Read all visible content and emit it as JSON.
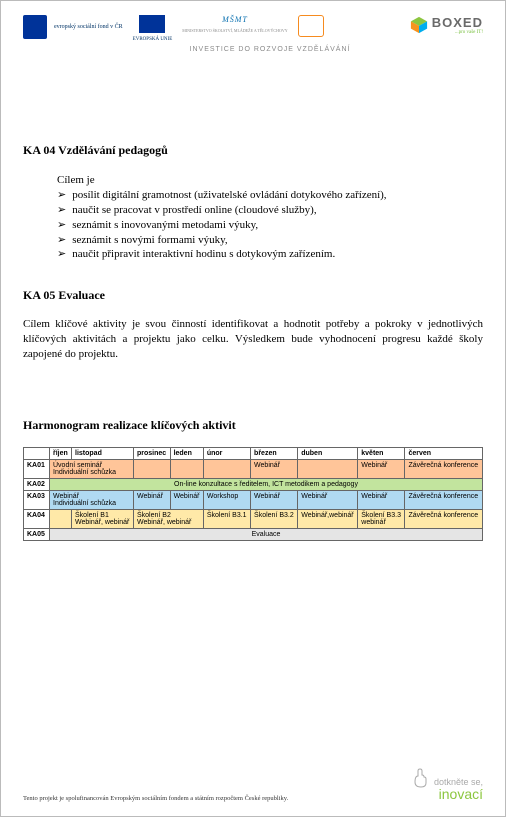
{
  "header": {
    "esf_text": "evropský\nsociální\nfond v ČR",
    "eu_text": "EVROPSKÁ UNIE",
    "msmt": "MŠMT",
    "msmt_sub": "MINISTERSTVO ŠKOLSTVÍ,\nMLÁDEŽE A TĚLOVÝCHOVY",
    "boxed": "BOXED",
    "boxed_sub": "...pro vaše IT!",
    "inv_line": "INVESTICE DO ROZVOJE VZDĚLÁVÁNÍ"
  },
  "ka04": {
    "heading": "KA 04 Vzdělávání pedagogů",
    "intro": "Cílem je",
    "bullets": [
      "posílit digitální gramotnost (uživatelské ovládání dotykového zařízení),",
      "naučit se pracovat v prostředí online (cloudové služby),",
      "seznámit s inovovanými metodami výuky,",
      "seznámit s novými formami výuky,",
      "naučit připravit interaktivní hodinu s dotykovým zařízením."
    ]
  },
  "ka05": {
    "heading": "KA 05 Evaluace",
    "para": "Cílem klíčové aktivity je svou činností identifikovat a hodnotit potřeby a pokroky v jednotlivých klíčových aktivitách a projektu jako celku. Výsledkem bude vyhodnocení progresu každé školy zapojené do projektu."
  },
  "sched": {
    "heading": "Harmonogram realizace klíčových aktivit",
    "months": [
      "říjen",
      "listopad",
      "prosinec",
      "leden",
      "únor",
      "březen",
      "duben",
      "květen",
      "červen"
    ],
    "rows": {
      "KA01": {
        "color": "#ffc599",
        "c": [
          {
            "span": 2,
            "t": "Úvodní seminář\nIndividuální schůzka"
          },
          {
            "span": 1,
            "t": ""
          },
          {
            "span": 1,
            "t": ""
          },
          {
            "span": 1,
            "t": ""
          },
          {
            "span": 1,
            "t": "Webinář"
          },
          {
            "span": 1,
            "t": ""
          },
          {
            "span": 1,
            "t": "Webinář"
          },
          {
            "span": 1,
            "t": "Závěrečná konference"
          }
        ]
      },
      "KA02": {
        "color": "#c2e49e",
        "c": [
          {
            "span": 9,
            "t": "On-line konzultace s ředitelem, ICT metodikem a pedagogy",
            "center": true
          }
        ]
      },
      "KA03": {
        "color": "#b0daf2",
        "c": [
          {
            "span": 2,
            "t": "Webinář\nIndividuální schůzka"
          },
          {
            "span": 1,
            "t": "Webinář"
          },
          {
            "span": 1,
            "t": "Webinář"
          },
          {
            "span": 1,
            "t": "Workshop"
          },
          {
            "span": 1,
            "t": "Webinář"
          },
          {
            "span": 1,
            "t": "Webinář"
          },
          {
            "span": 1,
            "t": "Webinář"
          },
          {
            "span": 1,
            "t": "Závěrečná konference"
          }
        ]
      },
      "KA04": {
        "color": "#ffe9a8",
        "c": [
          {
            "span": 1,
            "t": ""
          },
          {
            "span": 1,
            "t": "Školení B1\nWebinář, webinář"
          },
          {
            "span": 2,
            "t": "Školení B2\nWebinář, webinář"
          },
          {
            "span": 1,
            "t": "Školení B3.1"
          },
          {
            "span": 1,
            "t": "Školení B3.2"
          },
          {
            "span": 1,
            "t": "Webinář,webinář"
          },
          {
            "span": 1,
            "t": "Školení B3.3\nwebinář"
          },
          {
            "span": 1,
            "t": "Závěrečná konference"
          }
        ]
      },
      "KA05": {
        "color": "#e5e5e5",
        "c": [
          {
            "span": 9,
            "t": "Evaluace",
            "center": true
          }
        ]
      }
    }
  },
  "footer": {
    "note": "Tento projekt je spolufinancován Evropským sociálním fondem a státním rozpočtem České republiky.",
    "logo_l1": "dotkněte se,",
    "logo_l2": "inovací"
  }
}
